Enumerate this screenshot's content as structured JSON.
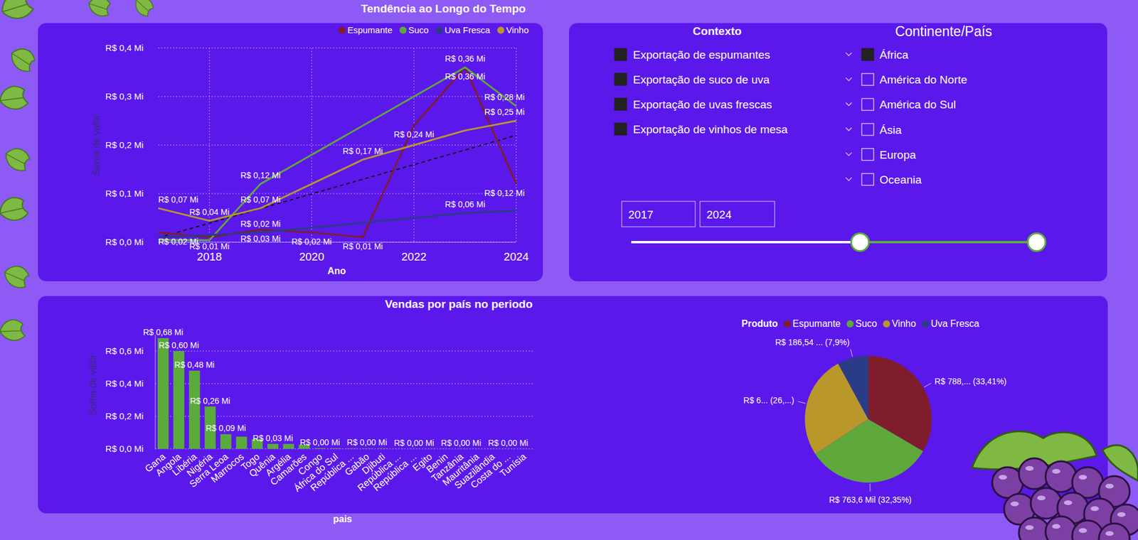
{
  "chart_data": [
    {
      "type": "line",
      "title": "Tendência ao Longo do Tempo",
      "x_label": "Ano",
      "y_label": "Soma de valor",
      "x": [
        2017,
        2018,
        2019,
        2020,
        2021,
        2022,
        2023,
        2024
      ],
      "xlim": [
        2017,
        2024
      ],
      "xticks": [
        2018,
        2020,
        2022,
        2024
      ],
      "ylim": [
        0,
        0.4
      ],
      "yticks": [
        {
          "value": 0,
          "label": "R$ 0,0 Mi"
        },
        {
          "value": 0.1,
          "label": "R$ 0,1 Mi"
        },
        {
          "value": 0.2,
          "label": "R$ 0,2 Mi"
        },
        {
          "value": 0.3,
          "label": "R$ 0,3 Mi"
        },
        {
          "value": 0.4,
          "label": "R$ 0,4 Mi"
        }
      ],
      "grid": true,
      "legend": "top-right",
      "data_labels": true,
      "series": [
        {
          "name": "Espumante",
          "color": "#7f1d2d",
          "values": [
            0.02,
            0.01,
            0.026,
            0.02,
            0.01,
            0.24,
            0.36,
            0.12
          ],
          "value_labels": [
            "R$ 0,02 Mi",
            "R$ 0,01 Mi",
            "R$ 0,03 Mi",
            "R$ 0,02 Mi",
            "R$ 0,01 Mi",
            "R$ 0,24 Mi",
            "R$ 0,36 Mi",
            "R$ 0,12 Mi"
          ]
        },
        {
          "name": "Suco",
          "color": "#5ea83c",
          "values": [
            0.005,
            0.004,
            0.12,
            0.18,
            0.24,
            0.3,
            0.36,
            0.28
          ],
          "value_labels": [
            null,
            null,
            "R$ 0,12 Mi",
            null,
            null,
            null,
            "R$ 0,36 Mi",
            "R$ 0,28 Mi"
          ]
        },
        {
          "name": "Uva Fresca",
          "color": "#2b3c86",
          "values": [
            0.01,
            0.015,
            0.02,
            0.03,
            0.04,
            0.05,
            0.06,
            0.065
          ],
          "value_labels": [
            null,
            null,
            "R$ 0,02 Mi",
            null,
            null,
            null,
            "R$ 0,06 Mi",
            null
          ]
        },
        {
          "name": "Vinho",
          "color": "#b9972b",
          "values": [
            0.07,
            0.044,
            0.07,
            0.12,
            0.17,
            0.2,
            0.23,
            0.25
          ],
          "value_labels": [
            "R$ 0,07 Mi",
            "R$ 0,04 Mi",
            "R$ 0,07 Mi",
            null,
            "R$ 0,17 Mi",
            null,
            null,
            "R$ 0,25 Mi"
          ]
        }
      ],
      "trend": {
        "x": [
          2017,
          2024
        ],
        "values": [
          0.009,
          0.22
        ],
        "color": "#111111",
        "line_style": "dashed"
      }
    },
    {
      "type": "bar",
      "title": "Vendas por país no periodo",
      "x_label": "pais",
      "y_label": "Soma de valor",
      "categories": [
        "Gana",
        "Angola",
        "Libéria",
        "Nigéria",
        "Serra Leoa",
        "Marrocos",
        "Togo",
        "Quênia",
        "Argélia",
        "Camarões",
        "Congo",
        "África do Sul",
        "República ...",
        "Gabão",
        "Djibuti",
        "República ...",
        "República ...",
        "Egito",
        "Benin",
        "Tanzânia",
        "Mauritânia",
        "Suazilândia",
        "Costa do ...",
        "Tunísia"
      ],
      "values": [
        0.68,
        0.6,
        0.48,
        0.26,
        0.09,
        0.075,
        0.06,
        0.03,
        0.03,
        0.025,
        0.004,
        0.003,
        0.002,
        0.002,
        0.002,
        0.001,
        0.001,
        0.001,
        0.001,
        0.001,
        0.001,
        0.001,
        0.001,
        0.001
      ],
      "value_labels": [
        "R$ 0,68 Mi",
        "R$ 0,60 Mi",
        "R$ 0,48 Mi",
        "R$ 0,26 Mi",
        "R$ 0,09 Mi",
        null,
        null,
        "R$ 0,03 Mi",
        null,
        null,
        "R$ 0,00 Mi",
        null,
        null,
        "R$ 0,00 Mi",
        null,
        null,
        "R$ 0,00 Mi",
        null,
        null,
        "R$ 0,00 Mi",
        null,
        null,
        "R$ 0,00 Mi",
        null
      ],
      "color": "#5aab3c",
      "ylim": [
        0,
        0.7
      ],
      "yticks": [
        {
          "value": 0,
          "label": "R$ 0,0 Mi"
        },
        {
          "value": 0.2,
          "label": "R$ 0,2 Mi"
        },
        {
          "value": 0.4,
          "label": "R$ 0,4 Mi"
        },
        {
          "value": 0.6,
          "label": "R$ 0,6 Mi"
        }
      ],
      "grid": true,
      "data_labels": true
    },
    {
      "type": "pie",
      "legend_title": "Produto",
      "legend": "top",
      "categories": [
        "Espumante",
        "Suco",
        "Vinho",
        "Uva Fresca"
      ],
      "values": [
        33.41,
        32.35,
        26.34,
        7.9
      ],
      "value_labels": [
        "R$ 788,... (33,41%)",
        "R$ 763,6 Mil (32,35%)",
        "R$ 6... (26,...)",
        "R$ 186,54 ... (7,9%)"
      ],
      "colors": [
        "#7f1d2d",
        "#5ea83c",
        "#b9972b",
        "#2b3c86"
      ],
      "data_labels": true
    }
  ],
  "filters": {
    "context": {
      "title": "Contexto",
      "items": [
        {
          "label": "Exportação de espumantes",
          "checked": true
        },
        {
          "label": "Exportação de suco de uva",
          "checked": true
        },
        {
          "label": "Exportação de uvas frescas",
          "checked": true
        },
        {
          "label": "Exportação de vinhos de mesa",
          "checked": true
        }
      ]
    },
    "region": {
      "title": "Continente/País",
      "items": [
        {
          "label": "África",
          "checked": true
        },
        {
          "label": "América do Norte",
          "checked": false
        },
        {
          "label": "América do Sul",
          "checked": false
        },
        {
          "label": "Ásia",
          "checked": false
        },
        {
          "label": "Europa",
          "checked": false
        },
        {
          "label": "Oceania",
          "checked": false
        }
      ]
    },
    "year_range": {
      "from": 2017,
      "to": 2024
    }
  }
}
